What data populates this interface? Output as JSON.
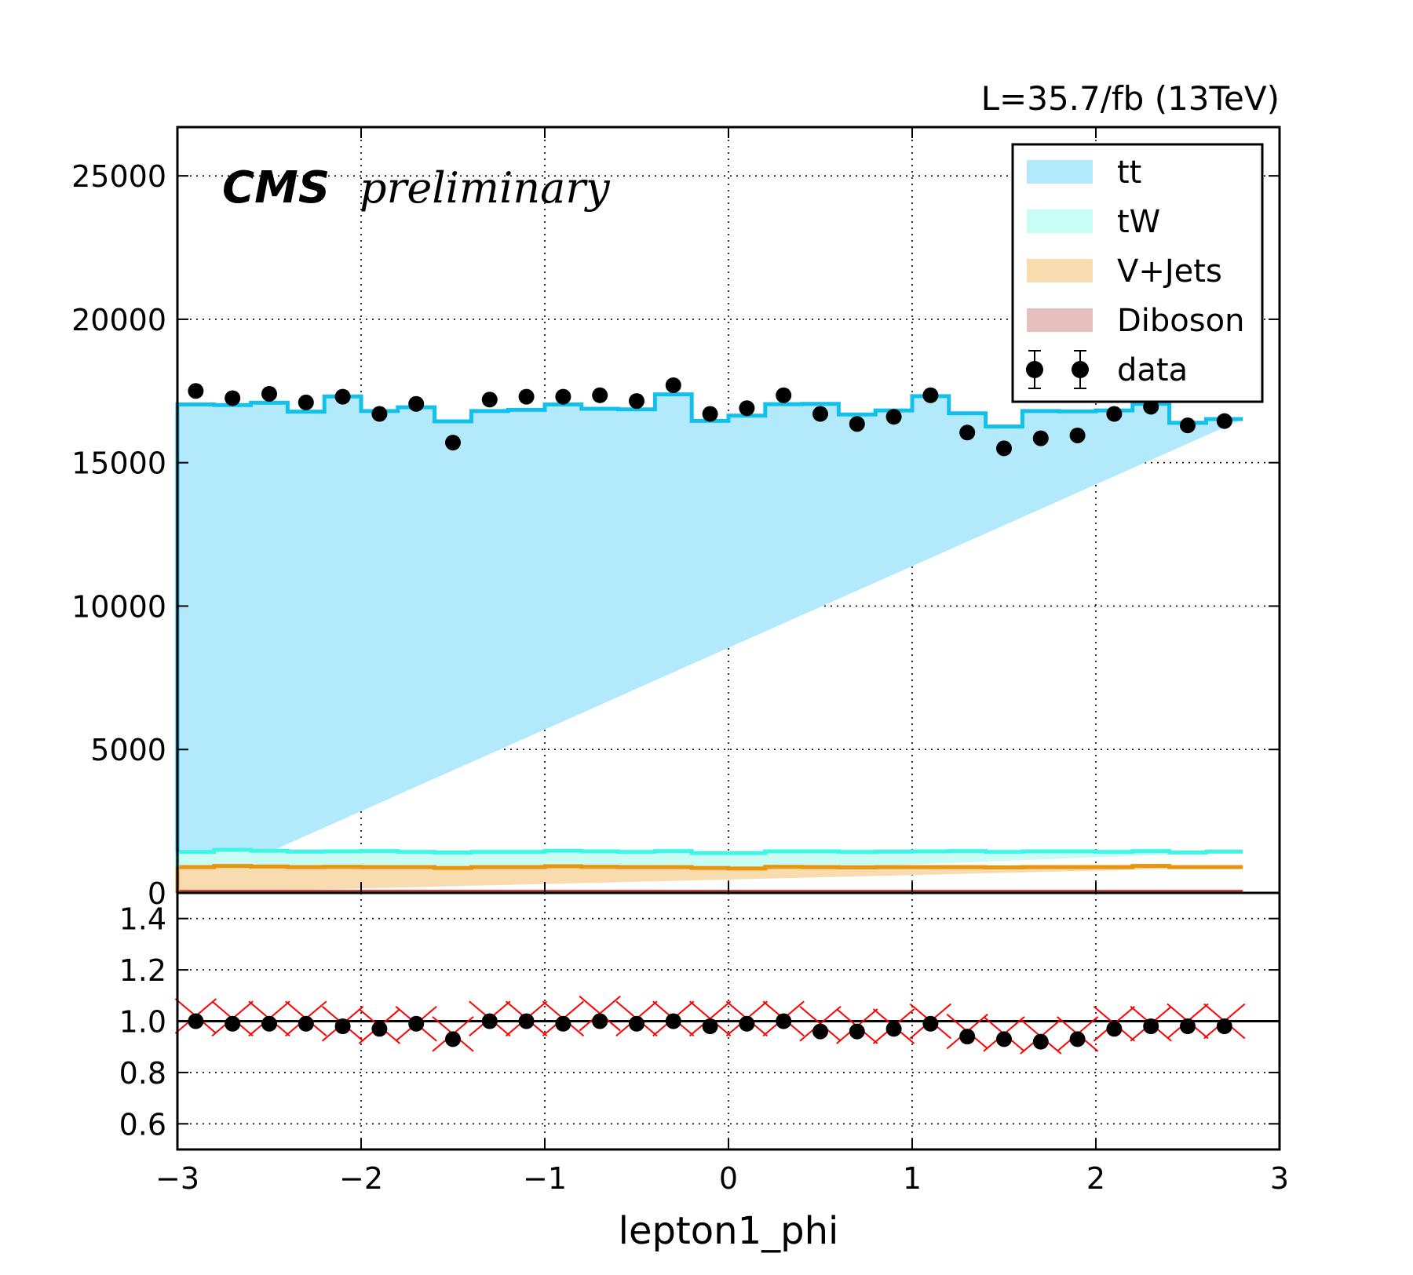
{
  "header": {
    "lumi_label": "L=35.7/fb (13TeV)",
    "cms_label": "CMS",
    "preliminary_label": "preliminary"
  },
  "legend": [
    {
      "label": "tt",
      "kind": "fill",
      "color": "#b3eafb"
    },
    {
      "label": "tW",
      "kind": "fill",
      "color": "#c9fcf2"
    },
    {
      "label": "V+Jets",
      "kind": "fill",
      "color": "#f9dbb0"
    },
    {
      "label": "Diboson",
      "kind": "fill",
      "color": "#e6bfbf"
    },
    {
      "label": "data",
      "kind": "marker",
      "color": "#000000"
    }
  ],
  "colors": {
    "tt_line": "#12c0ec",
    "tw_line": "#3ef5e6",
    "vjets_line": "#e8940c",
    "diboson_line": "#c04a4a",
    "ratio_marker_mc": "#ff0000",
    "ratio_marker_data": "#000000"
  },
  "chart_data": [
    {
      "type": "bar",
      "stacked": true,
      "xlabel": "",
      "ylabel": "",
      "xlim": [
        -3,
        3
      ],
      "ylim": [
        0,
        26700
      ],
      "grid": true,
      "legend_position": "top-right",
      "xticks": [
        -3,
        -2,
        -1,
        0,
        1,
        2,
        3
      ],
      "yticks": [
        0,
        5000,
        10000,
        15000,
        20000,
        25000
      ],
      "bin_edges": [
        -3.0,
        -2.8,
        -2.6,
        -2.4,
        -2.2,
        -2.0,
        -1.8,
        -1.6,
        -1.4,
        -1.2,
        -1.0,
        -0.8,
        -0.6,
        -0.4,
        -0.2,
        0.0,
        0.2,
        0.4,
        0.6,
        0.8,
        1.0,
        1.2,
        1.4,
        1.6,
        1.8,
        2.0,
        2.2,
        2.4,
        2.6,
        2.8
      ],
      "series": [
        {
          "name": "Diboson",
          "values": [
            40,
            40,
            40,
            40,
            40,
            40,
            40,
            40,
            40,
            40,
            40,
            40,
            40,
            40,
            40,
            40,
            40,
            40,
            40,
            40,
            40,
            40,
            40,
            40,
            40,
            40,
            40,
            40,
            40
          ]
        },
        {
          "name": "V+Jets",
          "values": [
            860,
            900,
            880,
            860,
            870,
            860,
            860,
            830,
            860,
            860,
            890,
            870,
            860,
            860,
            830,
            810,
            870,
            860,
            850,
            860,
            860,
            860,
            850,
            860,
            860,
            860,
            900,
            860,
            860
          ]
        },
        {
          "name": "tW",
          "values": [
            530,
            560,
            550,
            540,
            540,
            560,
            530,
            540,
            530,
            530,
            540,
            540,
            530,
            560,
            520,
            540,
            540,
            550,
            540,
            540,
            550,
            560,
            540,
            550,
            550,
            530,
            520,
            510,
            540
          ]
        },
        {
          "name": "tt",
          "values": [
            15600,
            15510,
            15620,
            15340,
            15860,
            15340,
            15500,
            15030,
            15370,
            15410,
            15560,
            15430,
            15430,
            15920,
            15070,
            15250,
            15590,
            15600,
            15250,
            15380,
            15870,
            15260,
            14830,
            15350,
            15340,
            15390,
            15590,
            14980,
            15080
          ]
        }
      ],
      "data": {
        "name": "data",
        "x": [
          -2.9,
          -2.7,
          -2.5,
          -2.3,
          -2.1,
          -1.9,
          -1.7,
          -1.5,
          -1.3,
          -1.1,
          -0.9,
          -0.7,
          -0.5,
          -0.3,
          -0.1,
          0.1,
          0.3,
          0.5,
          0.7,
          0.9,
          1.1,
          1.3,
          1.5,
          1.7,
          1.9,
          2.1,
          2.3,
          2.5,
          2.7
        ],
        "y": [
          17500,
          17250,
          17400,
          17100,
          17300,
          16700,
          17050,
          15700,
          17200,
          17300,
          17300,
          17350,
          17150,
          17700,
          16700,
          16900,
          17350,
          16700,
          16350,
          16600,
          17350,
          16050,
          15500,
          15850,
          15950,
          16700,
          16950,
          16300,
          16450
        ]
      }
    },
    {
      "type": "scatter",
      "xlabel": "lepton1_phi",
      "ylabel": "",
      "xlim": [
        -3,
        3
      ],
      "ylim": [
        0.5,
        1.5
      ],
      "grid": true,
      "reference_line": 1.0,
      "xticks": [
        -3,
        -2,
        -1,
        0,
        1,
        2,
        3
      ],
      "yticks": [
        0.6,
        0.8,
        1.0,
        1.2,
        1.4
      ],
      "series": [
        {
          "name": "",
          "marker": "x",
          "x": [
            -2.9,
            -2.7,
            -2.5,
            -2.3,
            -2.1,
            -1.9,
            -1.7,
            -1.5,
            -1.3,
            -1.1,
            -0.9,
            -0.7,
            -0.5,
            -0.3,
            -0.1,
            0.1,
            0.3,
            0.5,
            0.7,
            0.9,
            1.1,
            1.3,
            1.5,
            1.7,
            1.9,
            2.1,
            2.3,
            2.5,
            2.7
          ],
          "y": [
            1.02,
            1.01,
            1.01,
            1.01,
            0.99,
            0.98,
            0.99,
            0.95,
            1.01,
            1.01,
            1.01,
            1.03,
            1.01,
            1.01,
            1.01,
            1.01,
            1.01,
            0.99,
            0.98,
            0.98,
            1.0,
            0.96,
            0.95,
            0.94,
            0.95,
            0.99,
            0.99,
            1.0,
            1.0
          ]
        },
        {
          "name": "",
          "marker": "o",
          "x": [
            -2.9,
            -2.7,
            -2.5,
            -2.3,
            -2.1,
            -1.9,
            -1.7,
            -1.5,
            -1.3,
            -1.1,
            -0.9,
            -0.7,
            -0.5,
            -0.3,
            -0.1,
            0.1,
            0.3,
            0.5,
            0.7,
            0.9,
            1.1,
            1.3,
            1.5,
            1.7,
            1.9,
            2.1,
            2.3,
            2.5,
            2.7
          ],
          "y": [
            1.0,
            0.99,
            0.99,
            0.99,
            0.98,
            0.97,
            0.99,
            0.93,
            1.0,
            1.0,
            0.99,
            1.0,
            0.99,
            1.0,
            0.98,
            0.99,
            1.0,
            0.96,
            0.96,
            0.97,
            0.99,
            0.94,
            0.93,
            0.92,
            0.93,
            0.97,
            0.98,
            0.98,
            0.98
          ]
        }
      ]
    }
  ]
}
